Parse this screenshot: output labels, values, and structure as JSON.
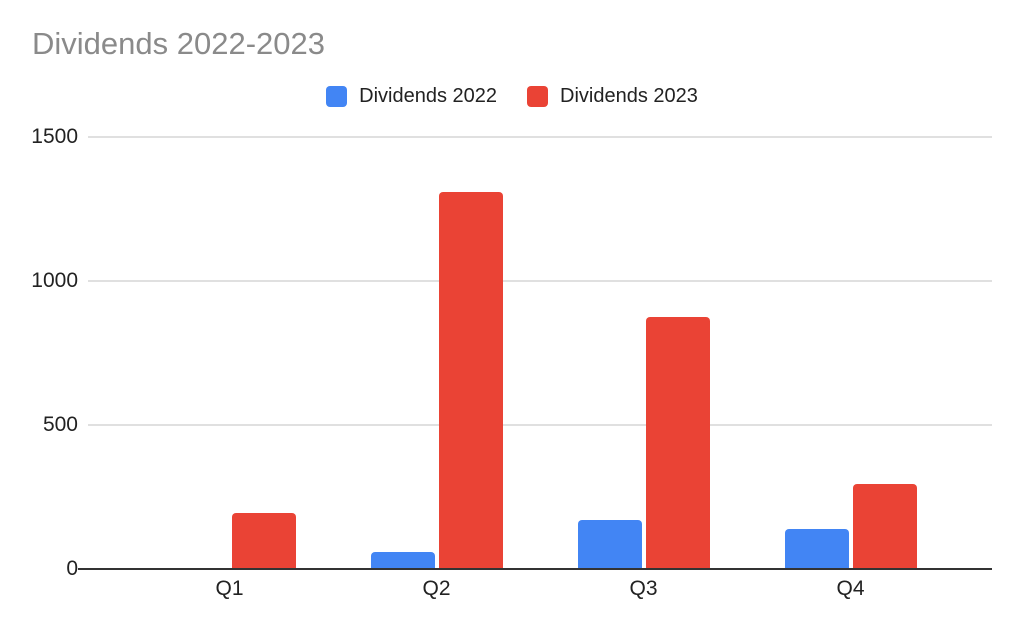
{
  "chart_data": {
    "type": "bar",
    "title": "Dividends 2022-2023",
    "categories": [
      "Q1",
      "Q2",
      "Q3",
      "Q4"
    ],
    "series": [
      {
        "name": "Dividends 2022",
        "color": "#4285f4",
        "values": [
          0,
          55,
          165,
          135
        ]
      },
      {
        "name": "Dividends 2023",
        "color": "#ea4335",
        "values": [
          190,
          1305,
          870,
          290
        ]
      }
    ],
    "xlabel": "",
    "ylabel": "",
    "ylim": [
      0,
      1500
    ],
    "yticks": [
      0,
      500,
      1000,
      1500
    ],
    "grid": true,
    "legend_position": "top",
    "colors": {
      "title": "#8a8a8a",
      "axis_labels": "#222222",
      "gridline": "#e0e0e0",
      "baseline": "#333333",
      "background": "#ffffff"
    }
  }
}
